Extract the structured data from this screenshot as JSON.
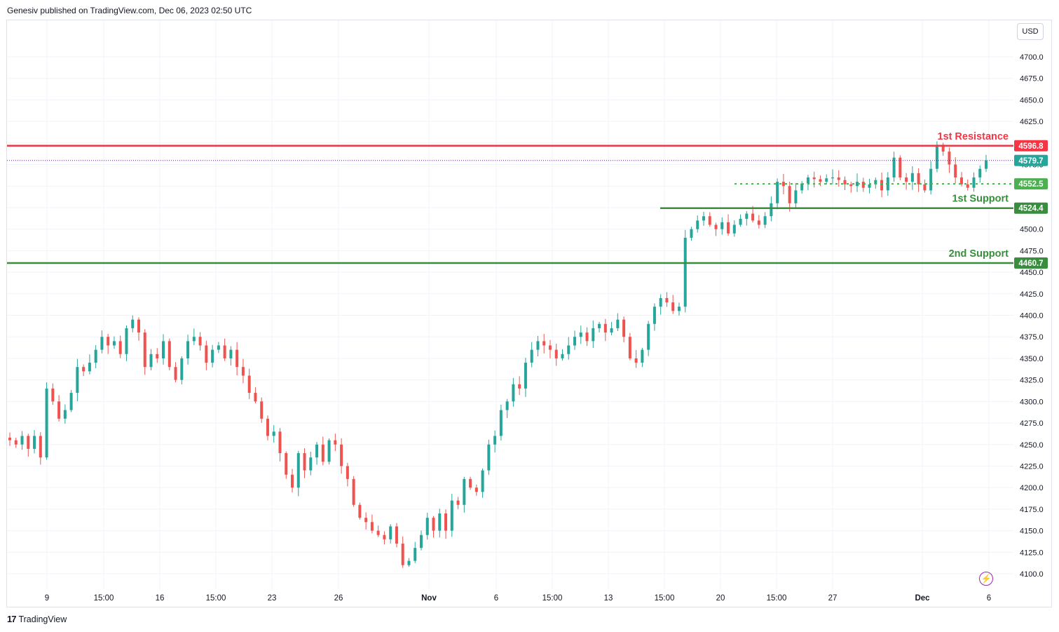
{
  "header": {
    "publisher_line": "Genesiv published on TradingView.com, Dec 06, 2023 02:50 UTC"
  },
  "footer": {
    "brand": "TradingView",
    "logo_text": "17"
  },
  "currency_button": {
    "label": "USD"
  },
  "alert_icon": {
    "icon": "lightning-icon",
    "glyph": "⚡"
  },
  "colors": {
    "up": "#26a69a",
    "down": "#ef5350",
    "resistance": "#f23645",
    "support": "#388e3c",
    "support_light": "#4caf50",
    "grid": "#f0f3fa",
    "last_price": "#26a69a"
  },
  "chart_data": {
    "type": "candlestick",
    "symbol_currency": "USD",
    "ylim": [
      4080,
      4720
    ],
    "y_ticks": [
      4100,
      4125,
      4150,
      4175,
      4200,
      4225,
      4250,
      4275,
      4300,
      4325,
      4350,
      4375,
      4400,
      4425,
      4450,
      4475,
      4500,
      4525,
      4550,
      4575,
      4600,
      4625,
      4650,
      4675,
      4700
    ],
    "x_tick_labels": [
      "9",
      "15:00",
      "16",
      "15:00",
      "23",
      "26",
      "Nov",
      "6",
      "15:00",
      "13",
      "15:00",
      "20",
      "15:00",
      "27",
      "Dec",
      "6"
    ],
    "x_tick_bold": [
      "Nov",
      "Dec"
    ],
    "close_path": [
      4255,
      4250,
      4260,
      4245,
      4260,
      4235,
      4315,
      4300,
      4280,
      4290,
      4310,
      4340,
      4335,
      4345,
      4360,
      4375,
      4365,
      4370,
      4355,
      4385,
      4395,
      4380,
      4340,
      4355,
      4350,
      4370,
      4340,
      4325,
      4350,
      4370,
      4375,
      4365,
      4345,
      4360,
      4365,
      4350,
      4360,
      4340,
      4330,
      4310,
      4300,
      4280,
      4260,
      4265,
      4240,
      4215,
      4200,
      4240,
      4220,
      4235,
      4250,
      4230,
      4255,
      4250,
      4225,
      4210,
      4180,
      4165,
      4160,
      4150,
      4145,
      4140,
      4155,
      4135,
      4110,
      4115,
      4130,
      4145,
      4165,
      4150,
      4170,
      4150,
      4185,
      4180,
      4210,
      4200,
      4195,
      4220,
      4250,
      4260,
      4290,
      4300,
      4320,
      4315,
      4345,
      4360,
      4370,
      4365,
      4360,
      4350,
      4355,
      4365,
      4375,
      4380,
      4370,
      4385,
      4390,
      4380,
      4385,
      4395,
      4375,
      4350,
      4345,
      4360,
      4390,
      4410,
      4420,
      4415,
      4405,
      4410,
      4490,
      4500,
      4510,
      4515,
      4505,
      4500,
      4508,
      4495,
      4505,
      4512,
      4518,
      4510,
      4505,
      4515,
      4530,
      4555,
      4550,
      4530,
      4545,
      4553,
      4560,
      4558,
      4555,
      4559,
      4560,
      4557,
      4552,
      4550,
      4555,
      4548,
      4552,
      4557,
      4545,
      4560,
      4583,
      4560,
      4555,
      4565,
      4552,
      4545,
      4570,
      4598,
      4590,
      4575,
      4560,
      4552,
      4548,
      4560,
      4570,
      4579.7
    ],
    "levels": [
      {
        "label": "1st Resistance",
        "value": 4596.8,
        "style": "solid"
      },
      {
        "label": "",
        "value": 4579.7,
        "style": "dotted-last-price"
      },
      {
        "label": "",
        "value": 4552.5,
        "style": "dotted"
      },
      {
        "label": "1st Support",
        "value": 4524.4,
        "style": "solid"
      },
      {
        "label": "2nd Support",
        "value": 4460.7,
        "style": "solid"
      }
    ],
    "price_badges": [
      "4596.8",
      "4579.7",
      "4552.5",
      "4524.4",
      "4460.7"
    ],
    "grid": true
  }
}
